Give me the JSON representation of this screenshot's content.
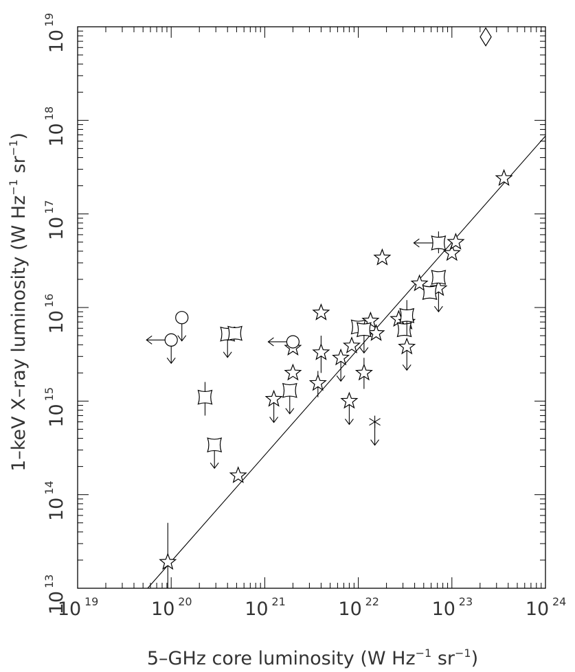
{
  "chart_data": {
    "type": "scatter",
    "title": "",
    "xlabel": "5–GHz core luminosity (W Hz",
    "xlabel_units_tail": " sr",
    "xlabel_close": ")",
    "ylabel": "1–keV X–ray luminosity (W Hz",
    "ylabel_units_tail": " sr",
    "ylabel_close": ")",
    "unit_exponent": "−1",
    "x_log": true,
    "y_log": true,
    "xlim": [
      1e+19,
      1e+24
    ],
    "ylim": [
      10000000000000.0,
      1e+19
    ],
    "tick_base": "10",
    "x_ticks": [
      {
        "value": 1e+19,
        "exp": "19"
      },
      {
        "value": 1e+20,
        "exp": "20"
      },
      {
        "value": 1e+21,
        "exp": "21"
      },
      {
        "value": 1e+22,
        "exp": "22"
      },
      {
        "value": 1e+23,
        "exp": "23"
      },
      {
        "value": 1e+24,
        "exp": "24"
      }
    ],
    "y_ticks": [
      {
        "value": 10000000000000.0,
        "exp": "13"
      },
      {
        "value": 100000000000000.0,
        "exp": "14"
      },
      {
        "value": 1000000000000000.0,
        "exp": "15"
      },
      {
        "value": 1e+16,
        "exp": "16"
      },
      {
        "value": 1e+17,
        "exp": "17"
      },
      {
        "value": 1e+18,
        "exp": "18"
      },
      {
        "value": 1e+19,
        "exp": "19"
      }
    ],
    "grid": false,
    "fit_line": {
      "x": [
        5.6e+19,
        1e+24
      ],
      "y": [
        10000000000000.0,
        6.8e+17
      ]
    },
    "series": [
      {
        "marker": "star",
        "points": [
          {
            "x": 9.2e+19,
            "y": 19000000000000.0,
            "yerr": [
              10000000000000.0,
              50000000000000.0
            ]
          },
          {
            "x": 5.2e+20,
            "y": 160000000000000.0
          },
          {
            "x": 1.25e+21,
            "y": 1050000000000000.0,
            "lim": [
              "down"
            ]
          },
          {
            "x": 2e+21,
            "y": 2000000000000000.0
          },
          {
            "x": 2e+21,
            "y": 3700000000000000.0
          },
          {
            "x": 3.7e+21,
            "y": 1550000000000000.0,
            "yerr": [
              1100000000000000.0,
              2100000000000000.0
            ]
          },
          {
            "x": 4e+21,
            "y": 3300000000000000.0,
            "yerr": [
              2000000000000000.0,
              5000000000000000.0
            ]
          },
          {
            "x": 4e+21,
            "y": 8800000000000000.0
          },
          {
            "x": 6.5e+21,
            "y": 2900000000000000.0,
            "lim": [
              "down"
            ]
          },
          {
            "x": 8e+21,
            "y": 1000000000000000.0,
            "lim": [
              "down"
            ]
          },
          {
            "x": 8.5e+21,
            "y": 3900000000000000.0
          },
          {
            "x": 1.15e+22,
            "y": 2000000000000000.0,
            "yerr": [
              1350000000000000.0,
              2900000000000000.0
            ]
          },
          {
            "x": 1.35e+22,
            "y": 7200000000000000.0
          },
          {
            "x": 1.55e+22,
            "y": 5300000000000000.0
          },
          {
            "x": 1.8e+22,
            "y": 3.4e+16
          },
          {
            "x": 2.7e+22,
            "y": 7500000000000000.0
          },
          {
            "x": 3.3e+22,
            "y": 3800000000000000.0,
            "lim": [
              "down"
            ]
          },
          {
            "x": 3.3e+22,
            "y": 7000000000000000.0
          },
          {
            "x": 4.5e+22,
            "y": 1.8e+16
          },
          {
            "x": 7.2e+22,
            "y": 1.6e+16,
            "lim": [
              "down"
            ]
          },
          {
            "x": 1e+23,
            "y": 3.8e+16
          },
          {
            "x": 1.1e+23,
            "y": 5e+16
          },
          {
            "x": 3.6e+23,
            "y": 2.4e+17
          }
        ]
      },
      {
        "marker": "square",
        "points": [
          {
            "x": 2.3e+20,
            "y": 1100000000000000.0,
            "yerr": [
              700000000000000.0,
              1600000000000000.0
            ]
          },
          {
            "x": 2.9e+20,
            "y": 340000000000000.0,
            "lim": [
              "down"
            ]
          },
          {
            "x": 4e+20,
            "y": 5200000000000000.0,
            "lim": [
              "down"
            ]
          },
          {
            "x": 4.8e+20,
            "y": 5300000000000000.0,
            "yerr": [
              4700000000000000.0,
              6200000000000000.0
            ]
          },
          {
            "x": 1.85e+21,
            "y": 1300000000000000.0,
            "lim": [
              "down"
            ]
          },
          {
            "x": 1e+22,
            "y": 6200000000000000.0
          },
          {
            "x": 1.15e+22,
            "y": 5800000000000000.0,
            "lim": [
              "down"
            ]
          },
          {
            "x": 3.1e+22,
            "y": 5800000000000000.0
          },
          {
            "x": 3.3e+22,
            "y": 8200000000000000.0,
            "yerr": [
              5000000000000000.0,
              1.2e+16
            ]
          },
          {
            "x": 5.8e+22,
            "y": 1.45e+16
          },
          {
            "x": 7.2e+22,
            "y": 2.1e+16
          },
          {
            "x": 7.2e+22,
            "y": 4.9e+16,
            "yerr": [
              3.8e+16,
              6.5e+16
            ],
            "lim": [
              "left"
            ]
          }
        ]
      },
      {
        "marker": "circle",
        "points": [
          {
            "x": 1e+20,
            "y": 4500000000000000.0,
            "lim": [
              "down",
              "left"
            ]
          },
          {
            "x": 1.3e+20,
            "y": 7800000000000000.0,
            "lim": [
              "down"
            ]
          },
          {
            "x": 2e+21,
            "y": 4300000000000000.0,
            "lim": [
              "left"
            ]
          }
        ]
      },
      {
        "marker": "asterisk",
        "points": [
          {
            "x": 1.5e+22,
            "y": 600000000000000.0,
            "lim": [
              "down"
            ]
          }
        ]
      },
      {
        "marker": "diamond",
        "points": [
          {
            "x": 2.3e+23,
            "y": 7.8e+18
          }
        ]
      }
    ]
  }
}
